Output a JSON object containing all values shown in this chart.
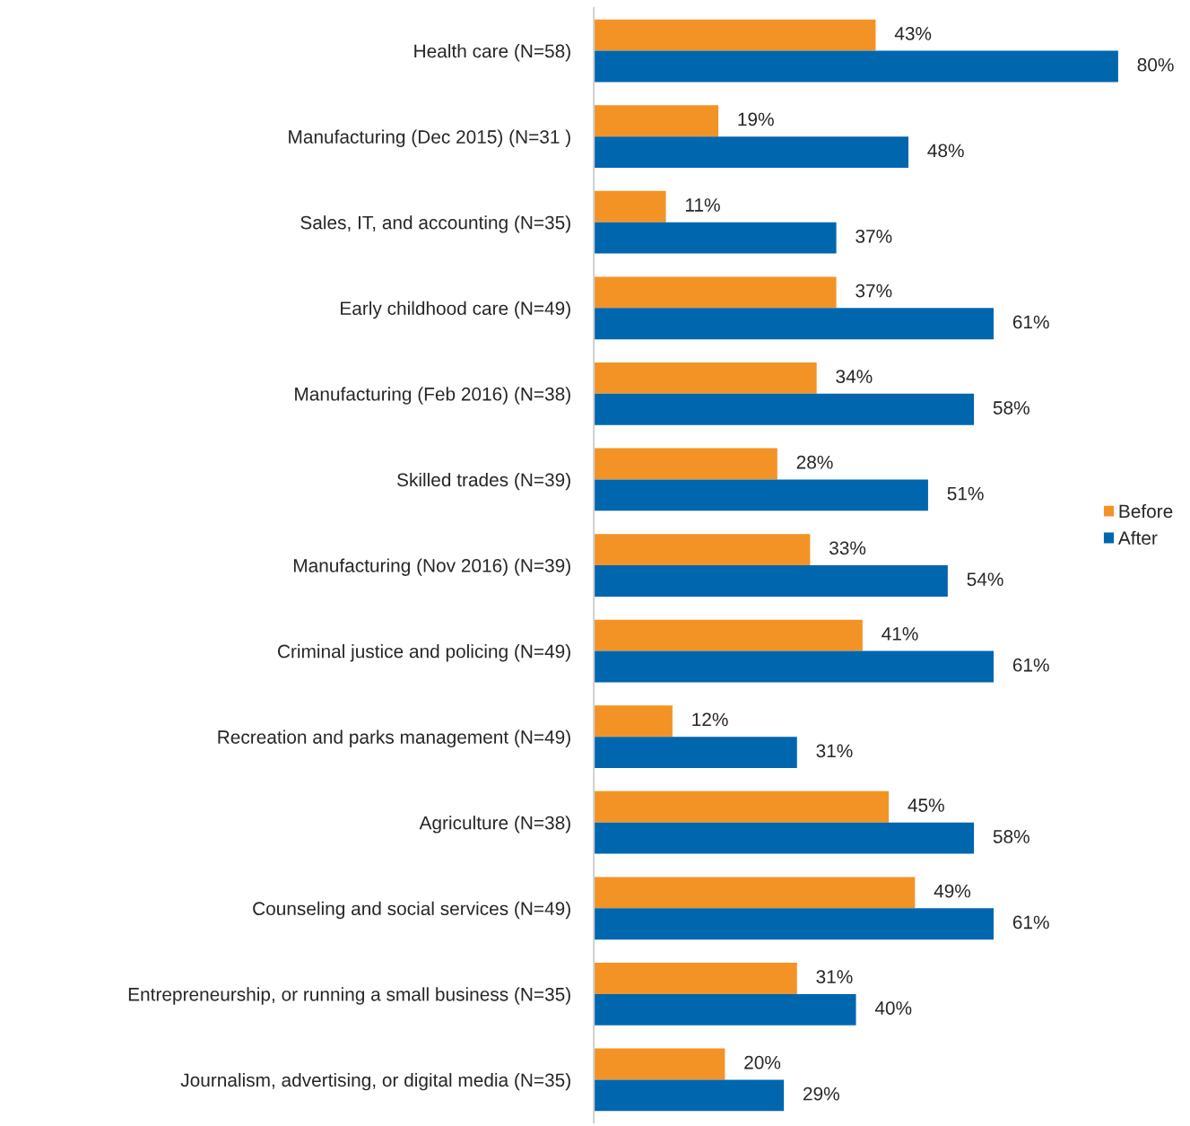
{
  "chart_data": {
    "type": "bar",
    "orientation": "horizontal",
    "legend": "right",
    "grid": false,
    "tick_labels": "y",
    "categories": [
      "Health care (N=58)",
      "Manufacturing (Dec 2015) (N=31 )",
      "Sales, IT, and accounting (N=35)",
      "Early childhood care (N=49)",
      "Manufacturing (Feb 2016) (N=38)",
      "Skilled trades (N=39)",
      "Manufacturing (Nov 2016) (N=39)",
      "Criminal justice and policing (N=49)",
      "Recreation and parks management (N=49)",
      "Agriculture (N=38)",
      "Counseling and social services (N=49)",
      "Entrepreneurship, or running a small business (N=35)",
      "Journalism, advertising, or digital media (N=35)"
    ],
    "series": [
      {
        "name": "Before",
        "color": "#f39325",
        "values": [
          43,
          19,
          11,
          37,
          34,
          28,
          33,
          41,
          12,
          45,
          49,
          31,
          20
        ],
        "value_labels": [
          "43%",
          "19%",
          "11%",
          "37%",
          "34%",
          "28%",
          "33%",
          "41%",
          "12%",
          "45%",
          "49%",
          "31%",
          "20%"
        ]
      },
      {
        "name": "After",
        "color": "#0066ae",
        "values": [
          80,
          48,
          37,
          61,
          58,
          51,
          54,
          61,
          31,
          58,
          61,
          40,
          29
        ],
        "value_labels": [
          "80%",
          "48%",
          "37%",
          "61%",
          "58%",
          "51%",
          "54%",
          "61%",
          "31%",
          "58%",
          "61%",
          "40%",
          "29%"
        ]
      }
    ]
  }
}
